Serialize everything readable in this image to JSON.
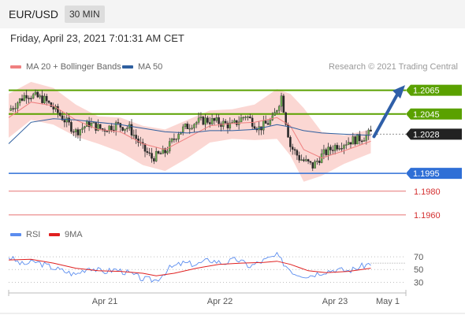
{
  "header": {
    "pair": "EUR/USD",
    "timeframe": "30 MIN",
    "datetime": "Friday, April 23, 2021 7:01:31 AM CET"
  },
  "legend": {
    "items": [
      {
        "label": "MA 20 + Bollinger Bands",
        "color": "#f08080"
      },
      {
        "label": "MA 50",
        "color": "#2f5f9f"
      }
    ],
    "credit": "Research © 2021 Trading Central"
  },
  "rsi_legend": {
    "items": [
      {
        "label": "RSI",
        "color": "#5b8def"
      },
      {
        "label": "9MA",
        "color": "#e02020"
      }
    ]
  },
  "x_axis": {
    "labels": [
      "Apr 21",
      "Apr 22",
      "Apr 23",
      "May 1"
    ]
  },
  "colors": {
    "resistance": "#5aa100",
    "support": "#2f6fd6",
    "target": "#e05050",
    "current": "#222222",
    "candle_up": "#6aa84f",
    "candle_down": "#2a2a2a",
    "band_fill": "#f9c9c4",
    "ma20": "#f08080",
    "ma50": "#2f5f9f",
    "arrow": "#2f5fa8"
  },
  "chart_data": [
    {
      "type": "candlestick",
      "title": "EUR/USD",
      "timeframe": "30 MIN",
      "y_range": [
        1.1952,
        1.2078
      ],
      "levels": [
        {
          "value": 1.2065,
          "label": "1.2065",
          "kind": "resistance"
        },
        {
          "value": 1.2045,
          "label": "1.2045",
          "kind": "resistance"
        },
        {
          "value": 1.2028,
          "label": "1.2028",
          "kind": "current"
        },
        {
          "value": 1.1995,
          "label": "1.1995",
          "kind": "support"
        },
        {
          "value": 1.198,
          "label": "1.1980",
          "kind": "target"
        },
        {
          "value": 1.196,
          "label": "1.1960",
          "kind": "target"
        }
      ],
      "bullish_arrow": {
        "from": 1.2026,
        "to": 1.2066
      },
      "close_path": [
        [
          0,
          1.2048
        ],
        [
          8,
          1.2062
        ],
        [
          16,
          1.2057
        ],
        [
          22,
          1.2046
        ],
        [
          30,
          1.203
        ],
        [
          36,
          1.2037
        ],
        [
          42,
          1.2032
        ],
        [
          48,
          1.2036
        ],
        [
          54,
          1.2033
        ],
        [
          60,
          1.2016
        ],
        [
          64,
          1.2008
        ],
        [
          70,
          1.2013
        ],
        [
          76,
          1.203
        ],
        [
          82,
          1.2037
        ],
        [
          88,
          1.204
        ],
        [
          94,
          1.2038
        ],
        [
          100,
          1.2035
        ],
        [
          106,
          1.2044
        ],
        [
          112,
          1.2033
        ],
        [
          118,
          1.204
        ],
        [
          122,
          1.206
        ],
        [
          126,
          1.2018
        ],
        [
          130,
          1.2008
        ],
        [
          136,
          1.2001
        ],
        [
          140,
          1.201
        ],
        [
          146,
          1.2018
        ],
        [
          152,
          1.2022
        ],
        [
          158,
          1.2025
        ],
        [
          162,
          1.2029
        ]
      ],
      "ma20": [
        [
          0,
          1.2042
        ],
        [
          10,
          1.2055
        ],
        [
          20,
          1.2052
        ],
        [
          30,
          1.204
        ],
        [
          40,
          1.2032
        ],
        [
          50,
          1.203
        ],
        [
          60,
          1.202
        ],
        [
          70,
          1.2015
        ],
        [
          80,
          1.2025
        ],
        [
          90,
          1.2035
        ],
        [
          100,
          1.2037
        ],
        [
          110,
          1.2038
        ],
        [
          120,
          1.2042
        ],
        [
          126,
          1.2035
        ],
        [
          132,
          1.2015
        ],
        [
          140,
          1.2008
        ],
        [
          150,
          1.2014
        ],
        [
          162,
          1.2022
        ]
      ],
      "ma50": [
        [
          0,
          1.202
        ],
        [
          10,
          1.2038
        ],
        [
          20,
          1.2041
        ],
        [
          30,
          1.204
        ],
        [
          40,
          1.2038
        ],
        [
          50,
          1.2036
        ],
        [
          60,
          1.2033
        ],
        [
          70,
          1.203
        ],
        [
          80,
          1.2029
        ],
        [
          90,
          1.2031
        ],
        [
          100,
          1.2031
        ],
        [
          110,
          1.2032
        ],
        [
          120,
          1.2036
        ],
        [
          126,
          1.2034
        ],
        [
          132,
          1.2031
        ],
        [
          140,
          1.2029
        ],
        [
          150,
          1.2028
        ],
        [
          162,
          1.2027
        ]
      ],
      "band_upper": [
        [
          0,
          1.2062
        ],
        [
          10,
          1.2072
        ],
        [
          20,
          1.2067
        ],
        [
          30,
          1.2053
        ],
        [
          40,
          1.2043
        ],
        [
          50,
          1.2042
        ],
        [
          60,
          1.2035
        ],
        [
          70,
          1.2032
        ],
        [
          80,
          1.204
        ],
        [
          90,
          1.2048
        ],
        [
          100,
          1.2049
        ],
        [
          110,
          1.2053
        ],
        [
          120,
          1.2066
        ],
        [
          126,
          1.2062
        ],
        [
          132,
          1.205
        ],
        [
          140,
          1.203
        ],
        [
          150,
          1.2027
        ],
        [
          162,
          1.2032
        ]
      ],
      "band_lower": [
        [
          0,
          1.2025
        ],
        [
          10,
          1.204
        ],
        [
          20,
          1.2036
        ],
        [
          30,
          1.2026
        ],
        [
          40,
          1.202
        ],
        [
          50,
          1.2013
        ],
        [
          60,
          1.2002
        ],
        [
          70,
          1.1997
        ],
        [
          80,
          1.2008
        ],
        [
          90,
          1.2021
        ],
        [
          100,
          1.2024
        ],
        [
          110,
          1.2023
        ],
        [
          120,
          1.2024
        ],
        [
          126,
          1.201
        ],
        [
          132,
          1.1988
        ],
        [
          140,
          1.1993
        ],
        [
          150,
          1.2003
        ],
        [
          162,
          1.2012
        ]
      ]
    },
    {
      "type": "line",
      "title": "RSI",
      "y_range": [
        18,
        80
      ],
      "y_ticks": [
        70,
        50,
        30
      ],
      "series": [
        {
          "name": "RSI",
          "values": [
            [
              0,
              70
            ],
            [
              6,
              58
            ],
            [
              12,
              62
            ],
            [
              18,
              55
            ],
            [
              24,
              48
            ],
            [
              30,
              42
            ],
            [
              36,
              54
            ],
            [
              42,
              46
            ],
            [
              48,
              50
            ],
            [
              54,
              44
            ],
            [
              60,
              35
            ],
            [
              66,
              33
            ],
            [
              72,
              52
            ],
            [
              78,
              60
            ],
            [
              84,
              58
            ],
            [
              90,
              65
            ],
            [
              96,
              60
            ],
            [
              102,
              66
            ],
            [
              108,
              55
            ],
            [
              114,
              64
            ],
            [
              120,
              72
            ],
            [
              124,
              56
            ],
            [
              128,
              44
            ],
            [
              134,
              40
            ],
            [
              140,
              46
            ],
            [
              146,
              50
            ],
            [
              152,
              48
            ],
            [
              158,
              55
            ],
            [
              162,
              60
            ]
          ]
        },
        {
          "name": "9MA",
          "values": [
            [
              0,
              65
            ],
            [
              10,
              66
            ],
            [
              20,
              60
            ],
            [
              30,
              52
            ],
            [
              40,
              48
            ],
            [
              50,
              47
            ],
            [
              60,
              44
            ],
            [
              66,
              40
            ],
            [
              74,
              44
            ],
            [
              84,
              52
            ],
            [
              94,
              58
            ],
            [
              104,
              60
            ],
            [
              114,
              61
            ],
            [
              120,
              63
            ],
            [
              126,
              58
            ],
            [
              134,
              48
            ],
            [
              142,
              45
            ],
            [
              152,
              47
            ],
            [
              162,
              52
            ]
          ]
        }
      ]
    }
  ]
}
